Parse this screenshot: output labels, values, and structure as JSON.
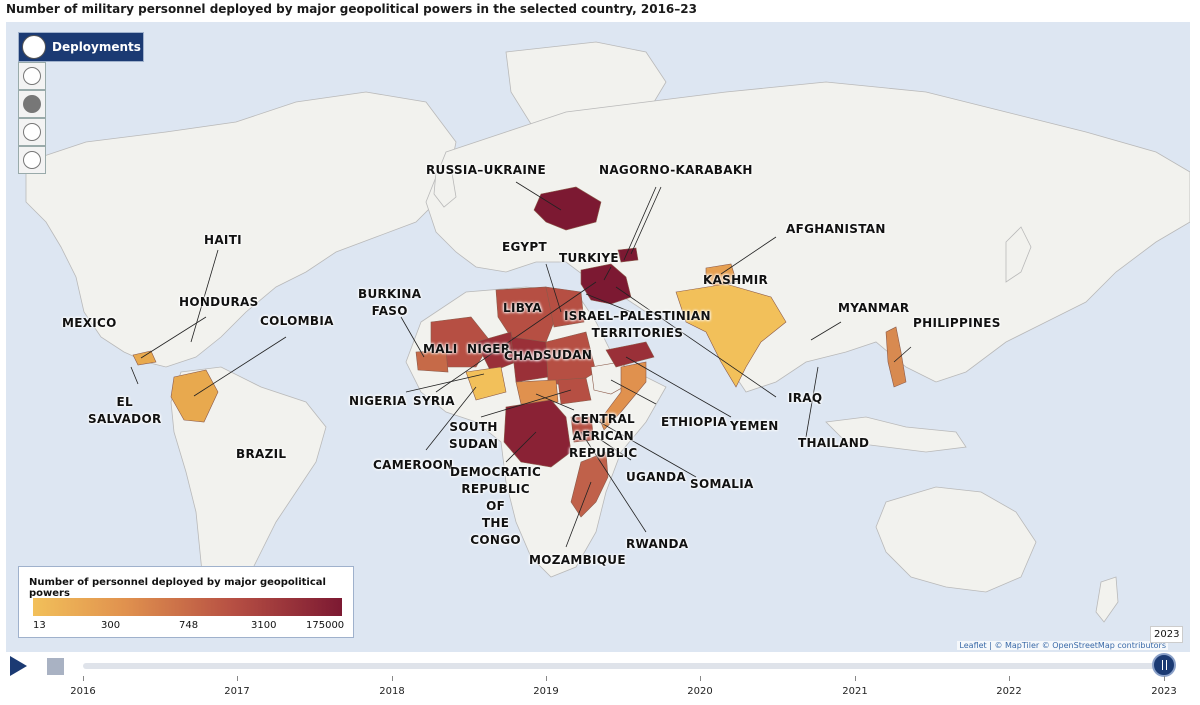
{
  "title": "Number of military personnel deployed by major geopolitical powers in the selected country, 2016–23",
  "panel": {
    "active_label": "Deployments",
    "active_icon": "deployments-icon",
    "tools": [
      "globe-icon",
      "skull-icon",
      "peace-icon",
      "runner-icon"
    ]
  },
  "labels": [
    {
      "id": "russia-ukraine",
      "text": "RUSSIA–UKRAINE"
    },
    {
      "id": "nagorno-karabakh",
      "text": "NAGORNO-KARABAKH"
    },
    {
      "id": "haiti",
      "text": "HAITI"
    },
    {
      "id": "egypt",
      "text": "EGYPT"
    },
    {
      "id": "turkiye",
      "text": "TURKIYE"
    },
    {
      "id": "afghanistan",
      "text": "AFGHANISTAN"
    },
    {
      "id": "kashmir",
      "text": "KASHMIR"
    },
    {
      "id": "honduras",
      "text": "HONDURAS"
    },
    {
      "id": "burkina-faso",
      "text": "BURKINA\nFASO"
    },
    {
      "id": "libya",
      "text": "LIBYA"
    },
    {
      "id": "israel-palestinian",
      "text": "ISRAEL–PALESTINIAN\nTERRITORIES"
    },
    {
      "id": "myanmar",
      "text": "MYANMAR"
    },
    {
      "id": "mexico",
      "text": "MEXICO"
    },
    {
      "id": "colombia",
      "text": "COLOMBIA"
    },
    {
      "id": "philippines",
      "text": "PHILIPPINES"
    },
    {
      "id": "mali",
      "text": "MALI"
    },
    {
      "id": "niger",
      "text": "NIGER"
    },
    {
      "id": "chad",
      "text": "CHAD"
    },
    {
      "id": "sudan",
      "text": "SUDAN"
    },
    {
      "id": "el-salvador",
      "text": "EL\nSALVADOR"
    },
    {
      "id": "nigeria",
      "text": "NIGERIA"
    },
    {
      "id": "syria",
      "text": "SYRIA"
    },
    {
      "id": "iraq",
      "text": "IRAQ"
    },
    {
      "id": "ethiopia",
      "text": "ETHIOPIA"
    },
    {
      "id": "central-african-republic",
      "text": "CENTRAL\nAFRICAN\nREPUBLIC"
    },
    {
      "id": "yemen",
      "text": "YEMEN"
    },
    {
      "id": "south-sudan",
      "text": "SOUTH\nSUDAN"
    },
    {
      "id": "thailand",
      "text": "THAILAND"
    },
    {
      "id": "brazil",
      "text": "BRAZIL"
    },
    {
      "id": "cameroon",
      "text": "CAMEROON"
    },
    {
      "id": "uganda",
      "text": "UGANDA"
    },
    {
      "id": "dr-congo",
      "text": "DEMOCRATIC\nREPUBLIC\nOF\nTHE\nCONGO"
    },
    {
      "id": "somalia",
      "text": "SOMALIA"
    },
    {
      "id": "rwanda",
      "text": "RWANDA"
    },
    {
      "id": "mozambique",
      "text": "MOZAMBIQUE"
    }
  ],
  "legend": {
    "title": "Number of personnel deployed by major geopolitical powers",
    "ticks": [
      "13",
      "300",
      "748",
      "3100",
      "175000"
    ],
    "colors": [
      "#f2c05a",
      "#e0914e",
      "#b64f43",
      "#7c1932"
    ]
  },
  "attribution": "Leaflet | © MapTiler © OpenStreetMap contributors",
  "timeline": {
    "selected": "2023",
    "years": [
      "2016",
      "2017",
      "2018",
      "2019",
      "2020",
      "2021",
      "2022",
      "2023"
    ]
  },
  "colors": {
    "ocean": "#dde6f2",
    "land": "#f2f2ee",
    "accent": "#1b3a73"
  }
}
